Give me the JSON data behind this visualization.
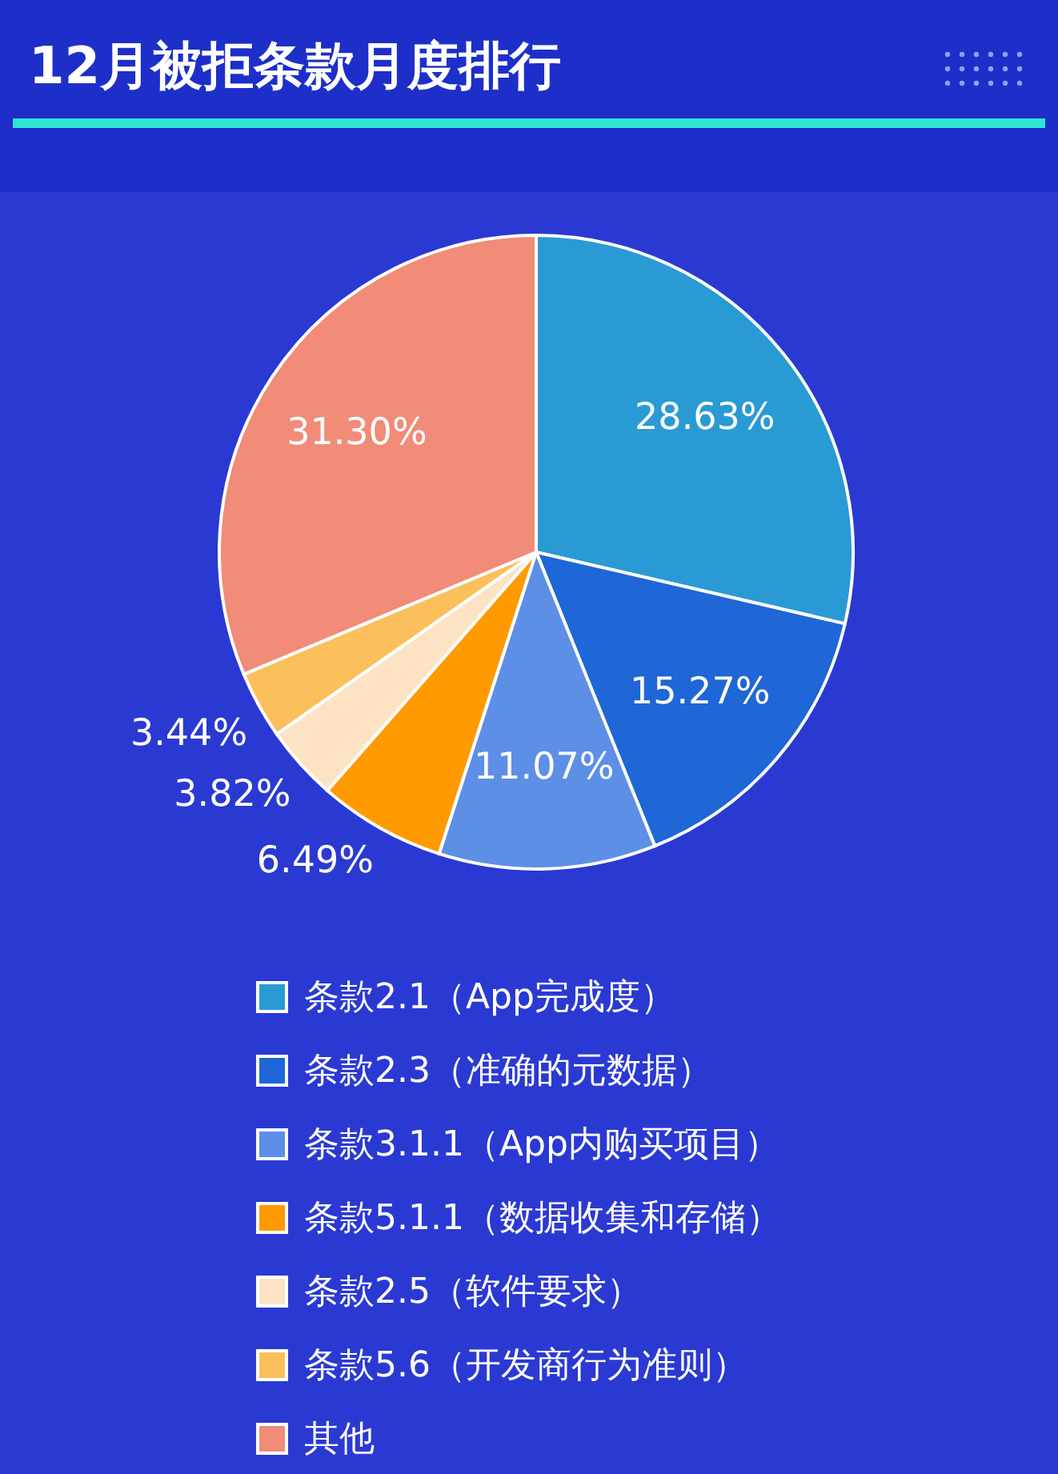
{
  "chart_data": {
    "type": "pie",
    "title": "12月被拒条款月度排行",
    "categories": [
      "条款2.1（App完成度）",
      "条款2.3（准确的元数据）",
      "条款3.1.1（App内购买项目）",
      "条款5.1.1（数据收集和存储）",
      "条款2.5（软件要求）",
      "条款5.6（开发商行为准则）",
      "其他"
    ],
    "values": [
      28.63,
      15.27,
      11.07,
      6.49,
      3.82,
      3.44,
      31.3
    ],
    "value_labels": [
      "28.63%",
      "15.27%",
      "11.07%",
      "6.49%",
      "3.82%",
      "3.44%",
      "31.30%"
    ],
    "colors": [
      "#2a9ad4",
      "#1f66d6",
      "#5d8fe6",
      "#ff9a00",
      "#fde3c4",
      "#fbbf5c",
      "#f08c78"
    ],
    "legend": "bottom"
  }
}
